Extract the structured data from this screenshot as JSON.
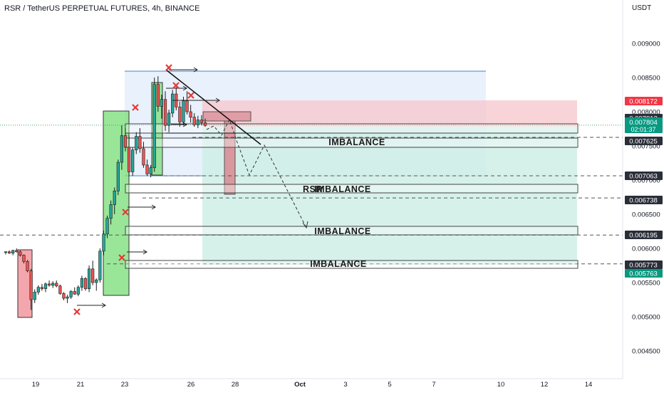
{
  "header": {
    "title": "RSR / TetherUS PERPETUAL FUTURES, 4h, BINANCE",
    "currency": "USDT"
  },
  "colors": {
    "up": "#26a69a",
    "down": "#ef5350",
    "green_box": "#7fe07f",
    "red_box": "#f4a6ad",
    "blue_zone": "#dbe9fb",
    "target_zone": "#cfeee6",
    "stop_zone": "#f6c9cf",
    "tag_dark": "#2a2e39",
    "tag_red": "#f23645",
    "tag_green": "#089981",
    "current_line": "#3aaa5c",
    "cross": "#e53935"
  },
  "chart_data": {
    "type": "candlestick",
    "title": "RSR / TetherUS PERPETUAL FUTURES, 4h, BINANCE",
    "y_axis": {
      "unit": "USDT",
      "range": [
        0.0042,
        0.0098
      ],
      "ticks": [
        "0.009000",
        "0.008500",
        "0.008000",
        "0.007500",
        "0.007000",
        "0.006500",
        "0.006000",
        "0.005500",
        "0.005000",
        "0.004500"
      ]
    },
    "x_axis": {
      "ticks": [
        "19",
        "21",
        "23",
        "26",
        "28",
        "Oct",
        "3",
        "5",
        "7",
        "10",
        "12",
        "14"
      ]
    },
    "price_labels": [
      {
        "value": "0.008172",
        "style": "red"
      },
      {
        "value": "0.007912",
        "style": "dark"
      },
      {
        "value": "0.007804",
        "style": "green",
        "subtext": "02:01:37"
      },
      {
        "value": "0.007625",
        "style": "dark"
      },
      {
        "value": "0.007063",
        "style": "dark"
      },
      {
        "value": "0.006738",
        "style": "dark"
      },
      {
        "value": "0.006195",
        "style": "dark"
      },
      {
        "value": "0.005773",
        "style": "dark"
      },
      {
        "value": "0.005763",
        "style": "green"
      }
    ],
    "current_price": 0.007804,
    "countdown": "02:01:37",
    "candles": [
      [
        0.00594,
        0.00596,
        0.00591,
        0.00595
      ],
      [
        0.00595,
        0.00597,
        0.00592,
        0.00593
      ],
      [
        0.00593,
        0.00598,
        0.0059,
        0.00597
      ],
      [
        0.00597,
        0.006,
        0.00594,
        0.00595
      ],
      [
        0.00595,
        0.00597,
        0.00588,
        0.0059
      ],
      [
        0.0059,
        0.00591,
        0.00578,
        0.00581
      ],
      [
        0.00581,
        0.00583,
        0.00565,
        0.00567
      ],
      [
        0.00567,
        0.0057,
        0.0051,
        0.00525
      ],
      [
        0.00525,
        0.0054,
        0.0052,
        0.00536
      ],
      [
        0.00536,
        0.00546,
        0.00532,
        0.00543
      ],
      [
        0.00543,
        0.00548,
        0.00538,
        0.00541
      ],
      [
        0.00541,
        0.0055,
        0.00536,
        0.00548
      ],
      [
        0.00548,
        0.00553,
        0.00544,
        0.00546
      ],
      [
        0.00546,
        0.00552,
        0.00542,
        0.00549
      ],
      [
        0.00549,
        0.00553,
        0.00543,
        0.00545
      ],
      [
        0.00545,
        0.00547,
        0.00532,
        0.00534
      ],
      [
        0.00534,
        0.00536,
        0.00524,
        0.00527
      ],
      [
        0.00527,
        0.00532,
        0.0052,
        0.00529
      ],
      [
        0.00529,
        0.00539,
        0.00526,
        0.00537
      ],
      [
        0.00537,
        0.00543,
        0.00532,
        0.00533
      ],
      [
        0.00533,
        0.00546,
        0.0053,
        0.00543
      ],
      [
        0.00543,
        0.0056,
        0.00538,
        0.00556
      ],
      [
        0.00556,
        0.00558,
        0.00538,
        0.00541
      ],
      [
        0.00541,
        0.00575,
        0.00536,
        0.0057
      ],
      [
        0.0057,
        0.00582,
        0.00546,
        0.0055
      ],
      [
        0.0055,
        0.00556,
        0.00538,
        0.00554
      ],
      [
        0.00554,
        0.006,
        0.0055,
        0.00596
      ],
      [
        0.00596,
        0.00626,
        0.0059,
        0.00621
      ],
      [
        0.00621,
        0.00648,
        0.00615,
        0.00644
      ],
      [
        0.00644,
        0.0067,
        0.00635,
        0.00664
      ],
      [
        0.00664,
        0.00689,
        0.0065,
        0.00684
      ],
      [
        0.00684,
        0.0073,
        0.00678,
        0.00726
      ],
      [
        0.00726,
        0.0078,
        0.00715,
        0.00765
      ],
      [
        0.00765,
        0.00776,
        0.00742,
        0.00748
      ],
      [
        0.00748,
        0.00765,
        0.00705,
        0.00712
      ],
      [
        0.00712,
        0.00748,
        0.00706,
        0.00744
      ],
      [
        0.00744,
        0.0077,
        0.00738,
        0.00764
      ],
      [
        0.00764,
        0.00776,
        0.0074,
        0.00746
      ],
      [
        0.00746,
        0.00756,
        0.00718,
        0.00722
      ],
      [
        0.00722,
        0.0073,
        0.00706,
        0.00709
      ],
      [
        0.00709,
        0.00722,
        0.00704,
        0.00718
      ],
      [
        0.00718,
        0.0085,
        0.00712,
        0.0084
      ],
      [
        0.0084,
        0.00852,
        0.008,
        0.00808
      ],
      [
        0.00808,
        0.00825,
        0.0079,
        0.00818
      ],
      [
        0.00818,
        0.0083,
        0.00772,
        0.0078
      ],
      [
        0.0078,
        0.00803,
        0.0077,
        0.00798
      ],
      [
        0.00798,
        0.00832,
        0.00792,
        0.00826
      ],
      [
        0.00826,
        0.00836,
        0.00802,
        0.00807
      ],
      [
        0.00807,
        0.00815,
        0.00778,
        0.00785
      ],
      [
        0.00785,
        0.00822,
        0.0078,
        0.00816
      ],
      [
        0.00816,
        0.0083,
        0.00796,
        0.008
      ],
      [
        0.008,
        0.0081,
        0.00784,
        0.00792
      ],
      [
        0.00792,
        0.00798,
        0.00778,
        0.00781
      ],
      [
        0.00781,
        0.00794,
        0.00776,
        0.00788
      ],
      [
        0.00788,
        0.00795,
        0.0078,
        0.00784
      ],
      [
        0.00784,
        0.0079,
        0.00778,
        0.0078
      ]
    ],
    "annotations": {
      "imbalance_labels": [
        "IMBALANCE",
        "RSR",
        "IMBALANCE",
        "IMBALANCE",
        "IMBALANCE"
      ],
      "cross_marks": 7,
      "target_zone": [
        0.00575,
        0.0079
      ],
      "stop_zone": [
        0.0079,
        0.00817
      ],
      "range_zone": [
        0.00706,
        0.0086
      ]
    }
  }
}
